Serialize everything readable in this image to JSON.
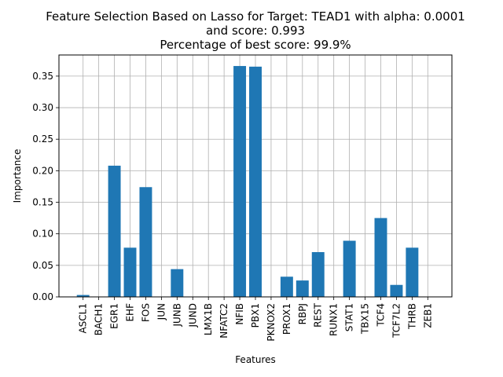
{
  "chart_data": {
    "type": "bar",
    "title_lines": [
      "Feature Selection Based on Lasso for Target: TEAD1 with alpha: 0.0001",
      "and score: 0.993",
      "Percentage of best score: 99.9%"
    ],
    "xlabel": "Features",
    "ylabel": "Importance",
    "categories": [
      "ASCL1",
      "BACH1",
      "EGR1",
      "EHF",
      "FOS",
      "JUN",
      "JUNB",
      "JUND",
      "LMX1B",
      "NFATC2",
      "NFIB",
      "PBX1",
      "PKNOX2",
      "PROX1",
      "RBPJ",
      "REST",
      "RUNX1",
      "STAT1",
      "TBX15",
      "TCF4",
      "TCF7L2",
      "THRB",
      "ZEB1"
    ],
    "values": [
      0.003,
      0.0,
      0.208,
      0.078,
      0.174,
      0.0,
      0.044,
      0.0,
      0.0,
      0.0,
      0.366,
      0.365,
      0.0,
      0.032,
      0.026,
      0.071,
      0.0,
      0.089,
      0.0,
      0.125,
      0.019,
      0.078,
      0.0
    ],
    "yticks": [
      "0.00",
      "0.05",
      "0.10",
      "0.15",
      "0.20",
      "0.25",
      "0.30",
      "0.35"
    ],
    "ylim": [
      0,
      0.3835
    ],
    "grid": true,
    "bar_color": "#1f77b4",
    "grid_color": "#b0b0b0"
  }
}
